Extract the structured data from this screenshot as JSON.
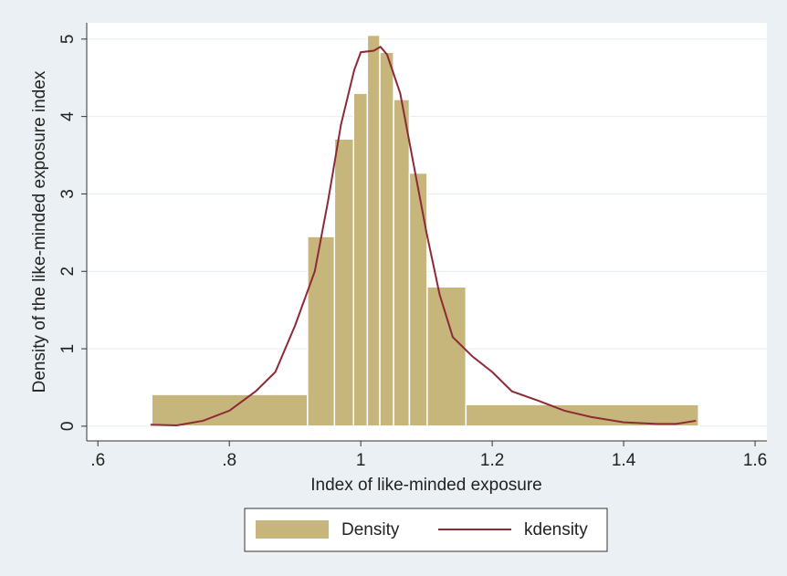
{
  "chart_data": {
    "type": "histogram",
    "x_label": "Index of like-minded exposure",
    "y_label": "Density of the like-minded exposure index",
    "xlim": [
      0.583,
      1.618
    ],
    "ylim": [
      -0.19,
      5.21
    ],
    "xticks": [
      {
        "value": 0.6,
        "label": ".6"
      },
      {
        "value": 0.8,
        "label": ".8"
      },
      1,
      1.2,
      1.4,
      1.6
    ],
    "yticks": [
      0,
      1,
      2,
      3,
      4,
      5
    ],
    "grid": true,
    "legend": "bottom",
    "series": [
      {
        "name": "Density",
        "type": "histogram",
        "color": "#c6b67c",
        "bins": [
          0.682,
          0.919,
          0.96,
          0.989,
          1.01,
          1.029,
          1.05,
          1.074,
          1.101,
          1.16,
          1.514
        ],
        "values": [
          0.41,
          2.45,
          3.71,
          4.3,
          5.05,
          4.83,
          4.22,
          3.27,
          1.8,
          0.28
        ]
      },
      {
        "name": "kdensity",
        "type": "line",
        "color": "#8c2a35",
        "x": [
          0.68,
          0.72,
          0.76,
          0.8,
          0.84,
          0.87,
          0.9,
          0.93,
          0.95,
          0.97,
          0.99,
          1.0,
          1.02,
          1.03,
          1.04,
          1.06,
          1.08,
          1.1,
          1.12,
          1.14,
          1.17,
          1.2,
          1.23,
          1.27,
          1.31,
          1.35,
          1.4,
          1.45,
          1.48,
          1.51
        ],
        "values": [
          0.02,
          0.01,
          0.07,
          0.2,
          0.45,
          0.7,
          1.3,
          2.0,
          2.9,
          3.9,
          4.6,
          4.83,
          4.85,
          4.9,
          4.8,
          4.3,
          3.4,
          2.5,
          1.7,
          1.15,
          0.9,
          0.7,
          0.45,
          0.33,
          0.2,
          0.12,
          0.05,
          0.03,
          0.03,
          0.07
        ]
      }
    ]
  }
}
